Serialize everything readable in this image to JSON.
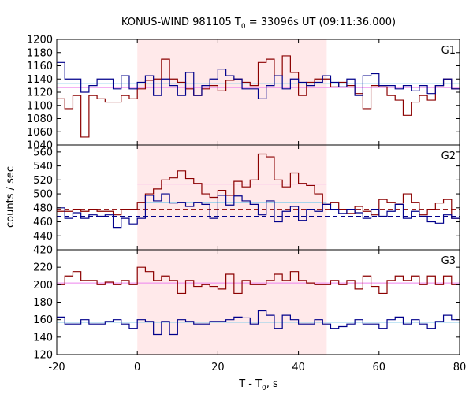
{
  "chart_data": {
    "type": "line",
    "title": "KONUS-WIND 981105 T",
    "title_sub": "0",
    "title_suffix": " = 33096s UT (09:11:36.000)",
    "xlabel": "T - T",
    "xlabel_sub": "0",
    "xlabel_suffix": ", s",
    "ylabel": "counts / sec",
    "xlim": [
      -20,
      80
    ],
    "xticks": [
      -20,
      0,
      20,
      40,
      60,
      80
    ],
    "shaded_interval": [
      0,
      47
    ],
    "colors": {
      "red_series": "#8b0000",
      "blue_series": "#00008b",
      "red_bg": "#ee82ee",
      "blue_bg": "#87ceeb",
      "shade": "#ffe9ea"
    },
    "bin_width": 2,
    "bin_start": -20,
    "panels": [
      {
        "label": "G1",
        "ylim": [
          1040,
          1200
        ],
        "yticks": [
          1040,
          1060,
          1080,
          1100,
          1120,
          1140,
          1160,
          1180,
          1200
        ],
        "series": [
          {
            "color_key": "red_series",
            "values": [
              1110,
              1095,
              1115,
              1052,
              1115,
              1110,
              1105,
              1105,
              1115,
              1110,
              1125,
              1138,
              1140,
              1170,
              1140,
              1135,
              1125,
              1115,
              1125,
              1130,
              1122,
              1138,
              1140,
              1135,
              1130,
              1165,
              1170,
              1145,
              1175,
              1150,
              1115,
              1135,
              1140,
              1140,
              1128,
              1135,
              1130,
              1118,
              1095,
              1130,
              1128,
              1115,
              1108,
              1085,
              1105,
              1115,
              1108,
              1130,
              1140,
              1125
            ]
          },
          {
            "color_key": "blue_series",
            "values": [
              1165,
              1140,
              1140,
              1120,
              1130,
              1140,
              1140,
              1125,
              1145,
              1125,
              1135,
              1145,
              1115,
              1140,
              1130,
              1115,
              1150,
              1115,
              1130,
              1140,
              1155,
              1145,
              1140,
              1125,
              1125,
              1110,
              1130,
              1145,
              1125,
              1140,
              1135,
              1130,
              1135,
              1145,
              1135,
              1128,
              1140,
              1115,
              1145,
              1148,
              1130,
              1130,
              1125,
              1130,
              1122,
              1130,
              1118,
              1130,
              1140,
              1125
            ]
          }
        ],
        "bg_levels": [
          {
            "color_key": "red_bg",
            "style": "solid",
            "segments": [
              {
                "x": [
                  -20,
                  80
                ],
                "y": 1127
              }
            ]
          },
          {
            "color_key": "blue_bg",
            "style": "solid",
            "segments": [
              {
                "x": [
                  -20,
                  80
                ],
                "y": 1133
              }
            ]
          }
        ]
      },
      {
        "label": "G2",
        "ylim": [
          420,
          570
        ],
        "yticks": [
          420,
          440,
          460,
          480,
          500,
          520,
          540,
          560
        ],
        "series": [
          {
            "color_key": "red_series",
            "values": [
              475,
              475,
              478,
              475,
              478,
              475,
              475,
              470,
              478,
              478,
              488,
              500,
              507,
              520,
              523,
              533,
              522,
              515,
              500,
              495,
              505,
              498,
              518,
              510,
              520,
              557,
              553,
              520,
              510,
              530,
              515,
              512,
              500,
              485,
              488,
              478,
              472,
              482,
              475,
              470,
              492,
              488,
              487,
              500,
              488,
              470,
              478,
              487,
              492,
              465
            ]
          },
          {
            "color_key": "blue_series",
            "values": [
              480,
              465,
              473,
              465,
              470,
              468,
              470,
              452,
              465,
              457,
              465,
              498,
              490,
              500,
              487,
              488,
              482,
              488,
              485,
              465,
              498,
              484,
              497,
              490,
              485,
              470,
              490,
              460,
              475,
              482,
              462,
              478,
              475,
              485,
              478,
              472,
              478,
              473,
              465,
              478,
              468,
              475,
              485,
              465,
              475,
              468,
              460,
              458,
              470,
              465
            ]
          }
        ],
        "bg_levels": [
          {
            "color_key": "red_series",
            "style": "dashed",
            "segments": [
              {
                "x": [
                  -20,
                  80
                ],
                "y": 478
              }
            ]
          },
          {
            "color_key": "blue_series",
            "style": "dashed",
            "segments": [
              {
                "x": [
                  -20,
                  80
                ],
                "y": 468
              }
            ]
          },
          {
            "color_key": "red_bg",
            "style": "solid",
            "segments": [
              {
                "x": [
                  0,
                  47
                ],
                "y": 514
              }
            ]
          },
          {
            "color_key": "blue_bg",
            "style": "solid",
            "segments": [
              {
                "x": [
                  0,
                  47
                ],
                "y": 488
              }
            ]
          }
        ]
      },
      {
        "label": "G3",
        "ylim": [
          120,
          240
        ],
        "yticks": [
          120,
          140,
          160,
          180,
          200,
          220
        ],
        "series": [
          {
            "color_key": "red_series",
            "values": [
              200,
              210,
              215,
              205,
              205,
              200,
              203,
              200,
              205,
              200,
              220,
              215,
              205,
              210,
              205,
              190,
              205,
              198,
              200,
              198,
              195,
              212,
              190,
              205,
              200,
              200,
              205,
              212,
              205,
              215,
              205,
              202,
              200,
              200,
              205,
              200,
              205,
              195,
              210,
              198,
              190,
              205,
              210,
              205,
              210,
              200,
              210,
              200,
              210,
              200
            ]
          },
          {
            "color_key": "blue_series",
            "values": [
              163,
              155,
              155,
              160,
              155,
              155,
              158,
              160,
              155,
              150,
              160,
              158,
              143,
              158,
              143,
              160,
              158,
              155,
              155,
              158,
              158,
              160,
              163,
              162,
              155,
              170,
              165,
              150,
              165,
              160,
              155,
              155,
              160,
              155,
              150,
              152,
              155,
              160,
              155,
              155,
              150,
              160,
              163,
              155,
              160,
              155,
              150,
              158,
              165,
              160
            ]
          }
        ],
        "bg_levels": [
          {
            "color_key": "red_bg",
            "style": "solid",
            "segments": [
              {
                "x": [
                  -20,
                  80
                ],
                "y": 202
              }
            ]
          },
          {
            "color_key": "blue_bg",
            "style": "solid",
            "segments": [
              {
                "x": [
                  -20,
                  80
                ],
                "y": 157
              }
            ]
          }
        ]
      }
    ]
  }
}
